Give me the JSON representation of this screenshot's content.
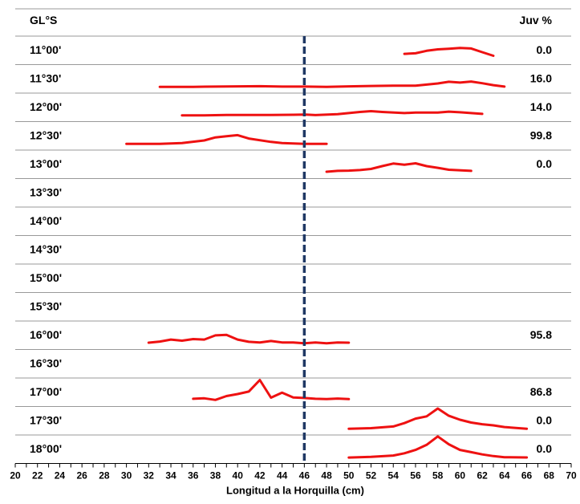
{
  "chart_data": {
    "type": "line",
    "header_left": "GL°S",
    "header_right": "Juv %",
    "xlabel": "Longitud a la Horquilla (cm)",
    "xlim": [
      20,
      70
    ],
    "x_ticks": [
      20,
      22,
      24,
      26,
      28,
      30,
      32,
      34,
      36,
      38,
      40,
      42,
      44,
      46,
      48,
      50,
      52,
      54,
      56,
      58,
      60,
      62,
      64,
      66,
      68,
      70
    ],
    "reference_line_x": 46,
    "colors": {
      "series": "#ee1111",
      "reference": "#1f3864",
      "grid": "#999999"
    },
    "rows": [
      {
        "label": "11°00'",
        "juv": "0.0",
        "points": [
          [
            55,
            0.45
          ],
          [
            56,
            0.5
          ],
          [
            57,
            0.72
          ],
          [
            58,
            0.85
          ],
          [
            59,
            0.9
          ],
          [
            60,
            0.97
          ],
          [
            61,
            0.93
          ],
          [
            62,
            0.6
          ],
          [
            63,
            0.28
          ]
        ]
      },
      {
        "label": "11°30'",
        "juv": "16.0",
        "points": [
          [
            33,
            0.05
          ],
          [
            36,
            0.05
          ],
          [
            38,
            0.07
          ],
          [
            40,
            0.09
          ],
          [
            42,
            0.11
          ],
          [
            44,
            0.07
          ],
          [
            46,
            0.07
          ],
          [
            48,
            0.05
          ],
          [
            50,
            0.09
          ],
          [
            52,
            0.13
          ],
          [
            54,
            0.15
          ],
          [
            56,
            0.15
          ],
          [
            58,
            0.35
          ],
          [
            59,
            0.5
          ],
          [
            60,
            0.43
          ],
          [
            61,
            0.52
          ],
          [
            62,
            0.37
          ],
          [
            63,
            0.2
          ],
          [
            64,
            0.07
          ]
        ]
      },
      {
        "label": "12°00'",
        "juv": "14.0",
        "points": [
          [
            35,
            0.05
          ],
          [
            37,
            0.05
          ],
          [
            39,
            0.08
          ],
          [
            41,
            0.08
          ],
          [
            43,
            0.08
          ],
          [
            45,
            0.1
          ],
          [
            46,
            0.12
          ],
          [
            47,
            0.07
          ],
          [
            49,
            0.15
          ],
          [
            51,
            0.35
          ],
          [
            52,
            0.42
          ],
          [
            53,
            0.35
          ],
          [
            55,
            0.25
          ],
          [
            56,
            0.3
          ],
          [
            58,
            0.3
          ],
          [
            59,
            0.38
          ],
          [
            60,
            0.32
          ],
          [
            62,
            0.18
          ]
        ]
      },
      {
        "label": "12°30'",
        "juv": "99.8",
        "points": [
          [
            30,
            0.05
          ],
          [
            33,
            0.05
          ],
          [
            35,
            0.12
          ],
          [
            37,
            0.35
          ],
          [
            38,
            0.62
          ],
          [
            39,
            0.72
          ],
          [
            40,
            0.82
          ],
          [
            41,
            0.52
          ],
          [
            43,
            0.22
          ],
          [
            44,
            0.12
          ],
          [
            46,
            0.05
          ],
          [
            48,
            0.05
          ]
        ]
      },
      {
        "label": "13°00'",
        "juv": "0.0",
        "points": [
          [
            48,
            0.1
          ],
          [
            49,
            0.18
          ],
          [
            50,
            0.2
          ],
          [
            51,
            0.25
          ],
          [
            52,
            0.35
          ],
          [
            53,
            0.6
          ],
          [
            54,
            0.83
          ],
          [
            55,
            0.72
          ],
          [
            56,
            0.85
          ],
          [
            57,
            0.6
          ],
          [
            58,
            0.45
          ],
          [
            59,
            0.28
          ],
          [
            61,
            0.18
          ]
        ]
      },
      {
        "label": "13°30'",
        "juv": "",
        "points": []
      },
      {
        "label": "14°00'",
        "juv": "",
        "points": []
      },
      {
        "label": "14°30'",
        "juv": "",
        "points": []
      },
      {
        "label": "15°00'",
        "juv": "",
        "points": []
      },
      {
        "label": "15°30'",
        "juv": "",
        "points": []
      },
      {
        "label": "16°00'",
        "juv": "95.8",
        "points": [
          [
            32,
            0.1
          ],
          [
            33,
            0.2
          ],
          [
            34,
            0.38
          ],
          [
            35,
            0.28
          ],
          [
            36,
            0.42
          ],
          [
            37,
            0.38
          ],
          [
            38,
            0.75
          ],
          [
            39,
            0.8
          ],
          [
            40,
            0.38
          ],
          [
            41,
            0.18
          ],
          [
            42,
            0.12
          ],
          [
            43,
            0.25
          ],
          [
            44,
            0.12
          ],
          [
            45,
            0.12
          ],
          [
            46,
            0.05
          ],
          [
            47,
            0.12
          ],
          [
            48,
            0.05
          ],
          [
            49,
            0.12
          ],
          [
            50,
            0.1
          ]
        ]
      },
      {
        "label": "16°30'",
        "juv": "",
        "points": []
      },
      {
        "label": "17°00'",
        "juv": "86.8",
        "points": [
          [
            36,
            0.18
          ],
          [
            37,
            0.22
          ],
          [
            38,
            0.08
          ],
          [
            39,
            0.42
          ],
          [
            40,
            0.6
          ],
          [
            41,
            0.82
          ],
          [
            42,
            1.85
          ],
          [
            43,
            0.28
          ],
          [
            44,
            0.72
          ],
          [
            45,
            0.3
          ],
          [
            46,
            0.25
          ],
          [
            47,
            0.18
          ],
          [
            48,
            0.15
          ],
          [
            49,
            0.2
          ],
          [
            50,
            0.15
          ]
        ]
      },
      {
        "label": "17°30'",
        "juv": "0.0",
        "points": [
          [
            50,
            0.05
          ],
          [
            52,
            0.1
          ],
          [
            54,
            0.25
          ],
          [
            55,
            0.55
          ],
          [
            56,
            0.95
          ],
          [
            57,
            1.15
          ],
          [
            58,
            1.85
          ],
          [
            59,
            1.2
          ],
          [
            60,
            0.85
          ],
          [
            61,
            0.6
          ],
          [
            62,
            0.45
          ],
          [
            63,
            0.35
          ],
          [
            64,
            0.2
          ],
          [
            66,
            0.05
          ]
        ]
      },
      {
        "label": "18°00'",
        "juv": "0.0",
        "points": [
          [
            50,
            0.02
          ],
          [
            52,
            0.08
          ],
          [
            54,
            0.2
          ],
          [
            55,
            0.4
          ],
          [
            56,
            0.7
          ],
          [
            57,
            1.15
          ],
          [
            58,
            1.9
          ],
          [
            59,
            1.2
          ],
          [
            60,
            0.7
          ],
          [
            61,
            0.5
          ],
          [
            62,
            0.3
          ],
          [
            63,
            0.15
          ],
          [
            64,
            0.05
          ],
          [
            66,
            0.03
          ]
        ]
      }
    ]
  }
}
